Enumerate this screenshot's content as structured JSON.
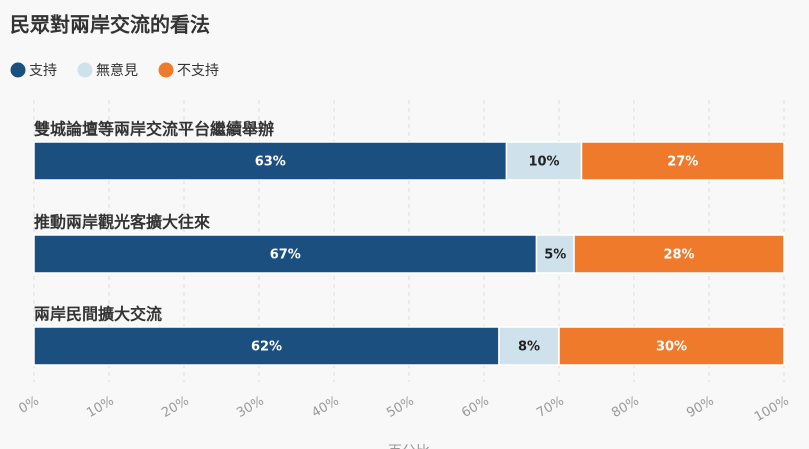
{
  "chart_data": {
    "type": "stacked_barh",
    "title": "民眾對兩岸交流的看法",
    "categories": [
      "雙城論壇等兩岸交流平台繼續舉辦",
      "推動兩岸觀光客擴大往來",
      "兩岸民間擴大交流"
    ],
    "series": [
      {
        "name": "支持",
        "color": "#1b4f80",
        "values": [
          63,
          67,
          62
        ],
        "value_labels": [
          "63%",
          "67%",
          "62%"
        ]
      },
      {
        "name": "無意見",
        "color": "#cfe2ec",
        "values": [
          10,
          5,
          8
        ],
        "value_labels": [
          "10%",
          "5%",
          "8%"
        ]
      },
      {
        "name": "不支持",
        "color": "#f07a2b",
        "values": [
          27,
          28,
          30
        ],
        "value_labels": [
          "27%",
          "28%",
          "30%"
        ]
      }
    ],
    "xlim": [
      0,
      100
    ],
    "xticks": [
      {
        "value": 0,
        "label": "0%"
      },
      {
        "value": 10,
        "label": "10%"
      },
      {
        "value": 20,
        "label": "20%"
      },
      {
        "value": 30,
        "label": "30%"
      },
      {
        "value": 40,
        "label": "40%"
      },
      {
        "value": 50,
        "label": "50%"
      },
      {
        "value": 60,
        "label": "60%"
      },
      {
        "value": 70,
        "label": "70%"
      },
      {
        "value": 80,
        "label": "80%"
      },
      {
        "value": 90,
        "label": "90%"
      },
      {
        "value": 100,
        "label": "100%"
      }
    ],
    "xlabel": "百分比",
    "grid": true,
    "legend": "top-left"
  }
}
